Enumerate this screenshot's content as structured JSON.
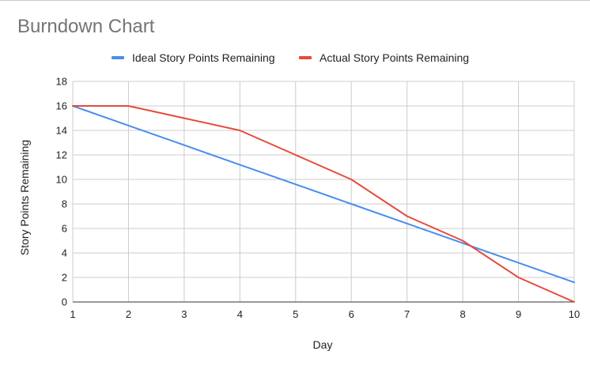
{
  "chart_data": {
    "type": "line",
    "title": "Burndown Chart",
    "xlabel": "Day",
    "ylabel": "Story Points Remaining",
    "x": [
      1,
      2,
      3,
      4,
      5,
      6,
      7,
      8,
      9,
      10
    ],
    "xlim": [
      1,
      10
    ],
    "ylim": [
      0,
      18
    ],
    "yticks": [
      0,
      2,
      4,
      6,
      8,
      10,
      12,
      14,
      16,
      18
    ],
    "xticks": [
      1,
      2,
      3,
      4,
      5,
      6,
      7,
      8,
      9,
      10
    ],
    "grid": true,
    "legend_position": "top-center",
    "series": [
      {
        "name": "Ideal Story Points Remaining",
        "color": "#4a8ded",
        "values": [
          16,
          14.4,
          12.8,
          11.2,
          9.6,
          8,
          6.4,
          4.8,
          3.2,
          1.6
        ]
      },
      {
        "name": "Actual Story Points Remaining",
        "color": "#e54b3c",
        "values": [
          16,
          16,
          15,
          14,
          12,
          10,
          7,
          5,
          2,
          0
        ]
      }
    ]
  }
}
